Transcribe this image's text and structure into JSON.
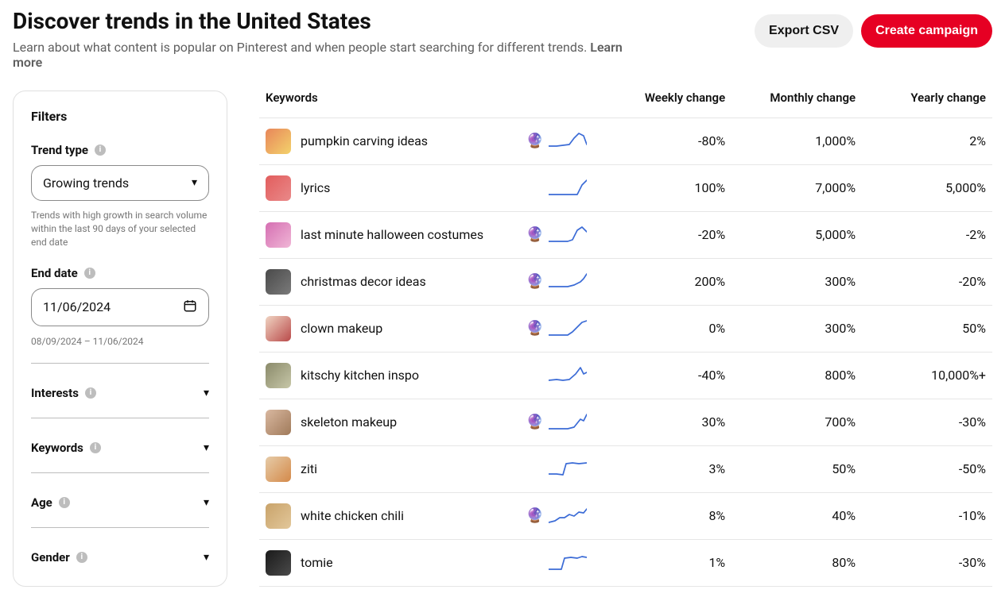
{
  "header": {
    "title": "Discover trends in the United States",
    "subtitle_lead": "Learn about what content is popular on Pinterest and when people start searching for different trends. ",
    "learn_more": "Learn more",
    "export_label": "Export CSV",
    "campaign_label": "Create campaign"
  },
  "colors": {
    "primary_button_bg": "#e60023",
    "primary_button_text": "#ffffff",
    "secondary_button_bg": "#efefef",
    "secondary_button_text": "#111111",
    "body_bg": "#ffffff",
    "text": "#111111",
    "muted_text": "#767676",
    "border": "#e0e0e0",
    "row_border": "#e6e6e6",
    "input_border": "#8a8a8a",
    "info_icon_bg": "#bdbdbd",
    "spark_color": "#3b6bd6"
  },
  "filters": {
    "heading": "Filters",
    "trend_type": {
      "label": "Trend type",
      "value": "Growing trends",
      "helper": "Trends with high growth in search volume within the last 90 days of your selected end date"
    },
    "end_date": {
      "label": "End date",
      "value": "11/06/2024",
      "range_caption": "08/09/2024 – 11/06/2024"
    },
    "accordions": {
      "interests": "Interests",
      "keywords": "Keywords",
      "age": "Age",
      "gender": "Gender"
    }
  },
  "table": {
    "headers": {
      "keywords": "Keywords",
      "weekly": "Weekly change",
      "monthly": "Monthly change",
      "yearly": "Yearly change"
    },
    "sparkline_styling": {
      "width": 48,
      "height": 24,
      "stroke_width": 1.7,
      "stroke_color": "#3b6bd6",
      "fill": "none"
    },
    "rows": [
      {
        "keyword": "pumpkin carving ideas",
        "weekly": "-80%",
        "monthly": "1,000%",
        "yearly": "2%",
        "has_crystal": true,
        "thumb_bg": "linear-gradient(135deg,#e8865a,#f3d26b)",
        "spark_points": [
          0,
          18,
          10,
          18,
          18,
          17,
          26,
          16,
          32,
          8,
          38,
          2,
          44,
          5,
          48,
          16
        ]
      },
      {
        "keyword": "lyrics",
        "weekly": "100%",
        "monthly": "7,000%",
        "yearly": "5,000%",
        "has_crystal": false,
        "thumb_bg": "linear-gradient(135deg,#e25d5d,#e98989)",
        "spark_points": [
          0,
          20,
          10,
          20,
          20,
          20,
          28,
          20,
          36,
          20,
          42,
          8,
          48,
          2
        ]
      },
      {
        "keyword": "last minute halloween costumes",
        "weekly": "-20%",
        "monthly": "5,000%",
        "yearly": "-2%",
        "has_crystal": true,
        "thumb_bg": "linear-gradient(135deg,#d56fb2,#f0b6d6)",
        "spark_points": [
          0,
          20,
          12,
          20,
          24,
          20,
          30,
          18,
          36,
          6,
          42,
          2,
          48,
          8
        ]
      },
      {
        "keyword": "christmas decor ideas",
        "weekly": "200%",
        "monthly": "300%",
        "yearly": "-20%",
        "has_crystal": true,
        "thumb_bg": "linear-gradient(135deg,#4a4a4a,#7a7a7a)",
        "spark_points": [
          0,
          18,
          12,
          18,
          24,
          18,
          32,
          16,
          40,
          12,
          44,
          8,
          48,
          2
        ]
      },
      {
        "keyword": "clown makeup",
        "weekly": "0%",
        "monthly": "300%",
        "yearly": "50%",
        "has_crystal": true,
        "thumb_bg": "linear-gradient(135deg,#f0d4c2,#b94a4a)",
        "spark_points": [
          0,
          20,
          12,
          20,
          24,
          20,
          30,
          16,
          36,
          10,
          42,
          4,
          48,
          2
        ]
      },
      {
        "keyword": "kitschy kitchen inspo",
        "weekly": "-40%",
        "monthly": "800%",
        "yearly": "10,000%+",
        "has_crystal": false,
        "thumb_bg": "linear-gradient(135deg,#8a8a6a,#c7c7a8)",
        "spark_points": [
          0,
          18,
          10,
          17,
          18,
          18,
          26,
          17,
          34,
          10,
          40,
          2,
          44,
          10,
          48,
          8
        ]
      },
      {
        "keyword": "skeleton makeup",
        "weekly": "30%",
        "monthly": "700%",
        "yearly": "-30%",
        "has_crystal": true,
        "thumb_bg": "linear-gradient(135deg,#d9b8a0,#a07a5a)",
        "spark_points": [
          0,
          20,
          12,
          20,
          24,
          20,
          32,
          18,
          40,
          8,
          44,
          10,
          48,
          2
        ]
      },
      {
        "keyword": "ziti",
        "weekly": "3%",
        "monthly": "50%",
        "yearly": "-50%",
        "has_crystal": false,
        "thumb_bg": "linear-gradient(135deg,#e6cba8,#d48a4a)",
        "spark_points": [
          0,
          18,
          10,
          18,
          18,
          19,
          22,
          5,
          30,
          4,
          38,
          5,
          48,
          4
        ]
      },
      {
        "keyword": "white chicken chili",
        "weekly": "8%",
        "monthly": "40%",
        "yearly": "-10%",
        "has_crystal": true,
        "thumb_bg": "linear-gradient(135deg,#c9a36a,#e2c79a)",
        "spark_points": [
          0,
          20,
          8,
          18,
          14,
          14,
          20,
          14,
          26,
          10,
          32,
          12,
          38,
          7,
          44,
          8,
          48,
          3
        ]
      },
      {
        "keyword": "tomie",
        "weekly": "1%",
        "monthly": "80%",
        "yearly": "-30%",
        "has_crystal": false,
        "thumb_bg": "linear-gradient(135deg,#1a1a1a,#4a4a4a)",
        "spark_points": [
          0,
          20,
          10,
          20,
          16,
          20,
          20,
          6,
          28,
          5,
          36,
          6,
          42,
          4,
          48,
          5
        ]
      }
    ]
  }
}
